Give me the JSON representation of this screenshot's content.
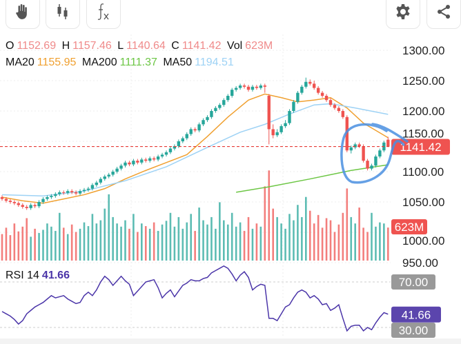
{
  "toolbar": {
    "left": [
      {
        "icon": "hand-icon",
        "name": "pan-tool-button"
      },
      {
        "icon": "candlestick-icon",
        "name": "chart-type-button"
      },
      {
        "icon": "function-icon",
        "name": "indicators-button"
      }
    ],
    "right": [
      {
        "icon": "gear-icon",
        "name": "settings-button"
      },
      {
        "icon": "share-icon",
        "name": "share-button"
      }
    ]
  },
  "legend": {
    "o_label": "O",
    "o": "1152.69",
    "h_label": "H",
    "h": "1157.46",
    "l_label": "L",
    "l": "1140.64",
    "c_label": "C",
    "c": "1141.42",
    "vol_label": "Vol",
    "vol": "623M",
    "ma20_label": "MA20",
    "ma20": "1155.95",
    "ma200_label": "MA200",
    "ma200": "1111.37",
    "ma50_label": "MA50",
    "ma50": "1194.51"
  },
  "rsi": {
    "label": "RSI 14",
    "value": "41.66"
  },
  "colors": {
    "up": "#26a69a",
    "down": "#ef5350",
    "value_text": "#ef8a8a",
    "ma20": "#f0a030",
    "ma200": "#6cc644",
    "ma50": "#9dd2f5",
    "rsi": "#4a34a8",
    "rsi_tag": "#5b45ad",
    "gray_tag": "#999999",
    "annotation": "#4a8fe0"
  },
  "chart_data": {
    "type": "candlestick",
    "price_axis": {
      "ticks": [
        "1300.00",
        "1250.00",
        "1200.00",
        "1150.00",
        "1100.00",
        "1050.00",
        "1000.00",
        "950.00"
      ],
      "range": [
        950,
        1300
      ]
    },
    "last_price_tag": "1141.42",
    "last_volume_tag": "623M",
    "rsi_axis": {
      "upper": "70.00",
      "lower": "30.00",
      "current_tag": "41.66"
    },
    "candles_ohlc": [
      [
        1058,
        1061,
        1052,
        1055
      ],
      [
        1055,
        1058,
        1049,
        1052
      ],
      [
        1052,
        1055,
        1047,
        1050
      ],
      [
        1050,
        1053,
        1045,
        1048
      ],
      [
        1048,
        1051,
        1042,
        1045
      ],
      [
        1045,
        1048,
        1039,
        1042
      ],
      [
        1042,
        1045,
        1037,
        1040
      ],
      [
        1040,
        1048,
        1037,
        1045
      ],
      [
        1045,
        1048,
        1040,
        1043
      ],
      [
        1043,
        1053,
        1040,
        1050
      ],
      [
        1050,
        1058,
        1047,
        1055
      ],
      [
        1055,
        1061,
        1052,
        1058
      ],
      [
        1058,
        1063,
        1055,
        1060
      ],
      [
        1060,
        1066,
        1057,
        1063
      ],
      [
        1063,
        1069,
        1060,
        1066
      ],
      [
        1066,
        1069,
        1062,
        1065
      ],
      [
        1065,
        1071,
        1062,
        1068
      ],
      [
        1068,
        1071,
        1063,
        1066
      ],
      [
        1066,
        1069,
        1061,
        1064
      ],
      [
        1064,
        1071,
        1061,
        1068
      ],
      [
        1068,
        1073,
        1065,
        1070
      ],
      [
        1070,
        1075,
        1067,
        1072
      ],
      [
        1072,
        1081,
        1069,
        1078
      ],
      [
        1078,
        1085,
        1075,
        1082
      ],
      [
        1082,
        1091,
        1079,
        1088
      ],
      [
        1088,
        1095,
        1085,
        1092
      ],
      [
        1092,
        1098,
        1089,
        1095
      ],
      [
        1095,
        1103,
        1092,
        1100
      ],
      [
        1100,
        1108,
        1097,
        1105
      ],
      [
        1105,
        1113,
        1102,
        1110
      ],
      [
        1110,
        1118,
        1107,
        1115
      ],
      [
        1115,
        1118,
        1109,
        1112
      ],
      [
        1112,
        1121,
        1109,
        1118
      ],
      [
        1118,
        1121,
        1112,
        1115
      ],
      [
        1115,
        1123,
        1112,
        1120
      ],
      [
        1120,
        1123,
        1115,
        1118
      ],
      [
        1118,
        1125,
        1115,
        1122
      ],
      [
        1122,
        1125,
        1117,
        1120
      ],
      [
        1120,
        1128,
        1117,
        1125
      ],
      [
        1125,
        1131,
        1122,
        1128
      ],
      [
        1128,
        1135,
        1125,
        1132
      ],
      [
        1132,
        1141,
        1129,
        1138
      ],
      [
        1138,
        1145,
        1135,
        1142
      ],
      [
        1142,
        1153,
        1139,
        1150
      ],
      [
        1150,
        1158,
        1147,
        1155
      ],
      [
        1155,
        1165,
        1152,
        1162
      ],
      [
        1162,
        1173,
        1159,
        1170
      ],
      [
        1170,
        1173,
        1165,
        1168
      ],
      [
        1168,
        1181,
        1165,
        1178
      ],
      [
        1178,
        1188,
        1175,
        1185
      ],
      [
        1185,
        1193,
        1182,
        1190
      ],
      [
        1190,
        1203,
        1187,
        1200
      ],
      [
        1200,
        1208,
        1197,
        1205
      ],
      [
        1205,
        1213,
        1202,
        1210
      ],
      [
        1210,
        1221,
        1207,
        1218
      ],
      [
        1218,
        1228,
        1215,
        1225
      ],
      [
        1225,
        1238,
        1222,
        1235
      ],
      [
        1235,
        1241,
        1232,
        1238
      ],
      [
        1238,
        1245,
        1235,
        1242
      ],
      [
        1242,
        1245,
        1237,
        1240
      ],
      [
        1240,
        1243,
        1232,
        1235
      ],
      [
        1235,
        1243,
        1232,
        1240
      ],
      [
        1240,
        1243,
        1235,
        1238
      ],
      [
        1238,
        1245,
        1235,
        1242
      ],
      [
        1242,
        1245,
        1230,
        1240
      ],
      [
        1225,
        1228,
        1145,
        1170
      ],
      [
        1170,
        1178,
        1155,
        1160
      ],
      [
        1160,
        1170,
        1157,
        1165
      ],
      [
        1165,
        1178,
        1162,
        1175
      ],
      [
        1175,
        1185,
        1172,
        1180
      ],
      [
        1180,
        1203,
        1177,
        1200
      ],
      [
        1200,
        1218,
        1197,
        1215
      ],
      [
        1215,
        1233,
        1212,
        1230
      ],
      [
        1230,
        1243,
        1227,
        1240
      ],
      [
        1240,
        1255,
        1237,
        1248
      ],
      [
        1248,
        1252,
        1242,
        1245
      ],
      [
        1245,
        1250,
        1235,
        1238
      ],
      [
        1238,
        1241,
        1227,
        1230
      ],
      [
        1230,
        1233,
        1222,
        1225
      ],
      [
        1225,
        1228,
        1215,
        1218
      ],
      [
        1218,
        1221,
        1207,
        1210
      ],
      [
        1210,
        1213,
        1202,
        1205
      ],
      [
        1205,
        1208,
        1197,
        1200
      ],
      [
        1200,
        1203,
        1187,
        1190
      ],
      [
        1190,
        1193,
        1132,
        1135
      ],
      [
        1135,
        1143,
        1130,
        1140
      ],
      [
        1140,
        1148,
        1137,
        1145
      ],
      [
        1145,
        1148,
        1139,
        1142
      ],
      [
        1142,
        1145,
        1115,
        1118
      ],
      [
        1118,
        1121,
        1102,
        1105
      ],
      [
        1105,
        1113,
        1102,
        1110
      ],
      [
        1110,
        1128,
        1107,
        1125
      ],
      [
        1125,
        1138,
        1122,
        1135
      ],
      [
        1135,
        1151,
        1132,
        1148
      ],
      [
        1152.69,
        1157.46,
        1140.64,
        1141.42
      ]
    ],
    "volume_m": [
      500,
      620,
      480,
      700,
      550,
      640,
      800,
      450,
      600,
      520,
      580,
      700,
      640,
      560,
      900,
      620,
      500,
      680,
      540,
      600,
      720,
      650,
      880,
      700,
      760,
      980,
      1250,
      820,
      700,
      640,
      760,
      600,
      880,
      540,
      700,
      650,
      600,
      720,
      560,
      680,
      750,
      900,
      640,
      820,
      600,
      720,
      880,
      560,
      1000,
      760,
      680,
      820,
      600,
      1100,
      760,
      680,
      900,
      640,
      720,
      560,
      820,
      600,
      700,
      640,
      1400,
      1700,
      980,
      820,
      700,
      600,
      880,
      760,
      1050,
      820,
      1200,
      940,
      700,
      860,
      620,
      800,
      760,
      540,
      680,
      900,
      1360,
      820,
      700,
      1000,
      620,
      540,
      900,
      640,
      720,
      700,
      623
    ],
    "rsi_14": [
      44,
      42,
      40,
      37,
      33,
      36,
      42,
      45,
      48,
      50,
      52,
      55,
      58,
      56,
      57,
      58,
      55,
      53,
      51,
      52,
      58,
      61,
      58,
      63,
      70,
      75,
      72,
      67,
      71,
      75,
      71,
      68,
      58,
      62,
      66,
      70,
      71,
      72,
      65,
      56,
      60,
      63,
      57,
      62,
      67,
      69,
      72,
      71,
      71,
      73,
      74,
      78,
      80,
      82,
      84,
      82,
      77,
      71,
      76,
      79,
      74,
      63,
      66,
      68,
      67,
      38,
      38,
      36,
      42,
      48,
      50,
      56,
      61,
      63,
      61,
      56,
      58,
      55,
      50,
      51,
      45,
      47,
      50,
      38,
      27,
      31,
      32,
      32,
      27,
      30,
      28,
      34,
      39,
      43,
      41.66
    ],
    "ma20": [
      [
        0,
        1058
      ],
      [
        5,
        1052
      ],
      [
        10,
        1048
      ],
      [
        15,
        1055
      ],
      [
        20,
        1062
      ],
      [
        25,
        1072
      ],
      [
        30,
        1088
      ],
      [
        35,
        1102
      ],
      [
        40,
        1115
      ],
      [
        45,
        1128
      ],
      [
        50,
        1158
      ],
      [
        55,
        1190
      ],
      [
        60,
        1218
      ],
      [
        64,
        1228
      ],
      [
        68,
        1222
      ],
      [
        72,
        1215
      ],
      [
        76,
        1218
      ],
      [
        80,
        1222
      ],
      [
        84,
        1205
      ],
      [
        88,
        1180
      ],
      [
        91,
        1168
      ],
      [
        94,
        1155.95
      ]
    ],
    "ma50": [
      [
        0,
        1062
      ],
      [
        10,
        1060
      ],
      [
        20,
        1068
      ],
      [
        30,
        1085
      ],
      [
        40,
        1108
      ],
      [
        50,
        1140
      ],
      [
        58,
        1165
      ],
      [
        64,
        1178
      ],
      [
        70,
        1195
      ],
      [
        76,
        1210
      ],
      [
        80,
        1212
      ],
      [
        86,
        1205
      ],
      [
        94,
        1194.51
      ]
    ],
    "ma200": [
      [
        57,
        1066
      ],
      [
        65,
        1075
      ],
      [
        75,
        1088
      ],
      [
        85,
        1102
      ],
      [
        94,
        1111.37
      ]
    ],
    "annotation": "hand-drawn circle around last 12 candles"
  }
}
